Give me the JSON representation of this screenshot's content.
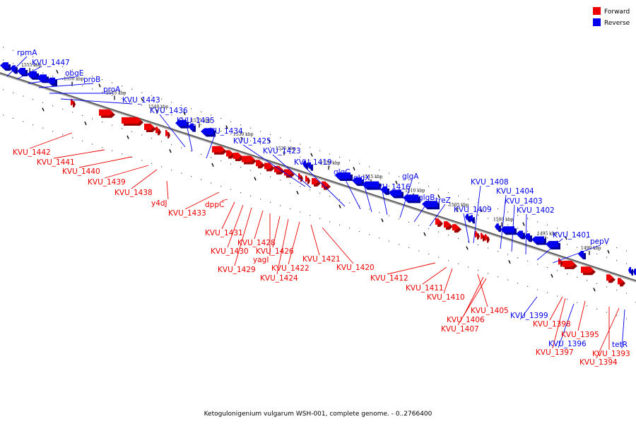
{
  "caption": "Ketogulonigenium vulgarum WSH-001, complete genome. - 0..2766400",
  "legend": [
    {
      "label": "Forward",
      "color": "#ee0000"
    },
    {
      "label": "Reverse",
      "color": "#0000ee"
    }
  ],
  "colors": {
    "forward": "#ee0000",
    "reverse": "#0000ee",
    "track": "#777777"
  },
  "ticks": [
    "1555 kbp",
    "1550 kbp",
    "1545 kbp",
    "1540 kbp",
    "1535 kbp",
    "1530 kbp",
    "1525 kbp",
    "1520 kbp",
    "1515 kbp",
    "1510 kbp",
    "1505 kbp",
    "1500 kbp",
    "1495 kbp",
    "1490 kbp"
  ],
  "reverse_genes": [
    "rpmA",
    "KVU_1447",
    "obgE",
    "proB",
    "proA",
    "KVU_1443",
    "KVU_1436",
    "KVU_1435",
    "KVU_1434",
    "KVU_1425",
    "KVU_1423",
    "KVU_1419",
    "glgC",
    "glgX",
    "KVU_1416",
    "glgA",
    "glgB",
    "treZ",
    "KVU_1409",
    "KVU_1408",
    "KVU_1404",
    "KVU_1403",
    "KVU_1402",
    "KVU_1401",
    "pepV",
    "KVU_1399",
    "KVU_1396",
    "tetR"
  ],
  "forward_genes": [
    "KVU_1442",
    "KVU_1441",
    "KVU_1440",
    "KVU_1439",
    "KVU_1438",
    "y4dJ",
    "KVU_1433",
    "dppC",
    "KVU_1431",
    "KVU_1430",
    "KVU_1429",
    "KVU_1428",
    "yagI",
    "KVU_1426",
    "KVU_1424",
    "KVU_1422",
    "KVU_1421",
    "KVU_1420",
    "KVU_1412",
    "KVU_1411",
    "KVU_1410",
    "KVU_1405",
    "KVU_1406",
    "KVU_1407",
    "KVU_1398",
    "KVU_1395",
    "KVU_1397",
    "KVU_1393",
    "KVU_1394"
  ]
}
